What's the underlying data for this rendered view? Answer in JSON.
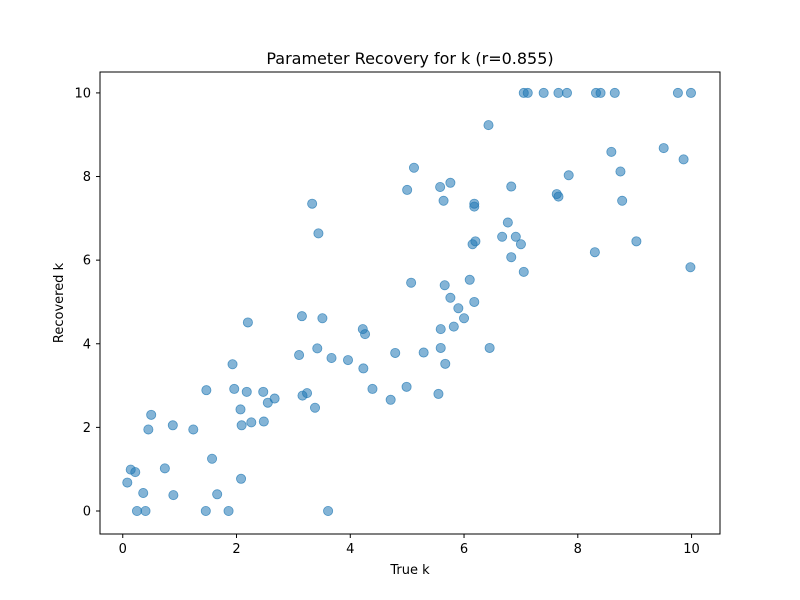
{
  "chart_data": {
    "type": "scatter",
    "title": "Parameter Recovery for k (r=0.855)",
    "xlabel": "True k",
    "ylabel": "Recovered k",
    "xlim": [
      -0.4,
      10.5
    ],
    "ylim": [
      -0.55,
      10.5
    ],
    "xticks": [
      0,
      2,
      4,
      6,
      8,
      10
    ],
    "yticks": [
      0,
      2,
      4,
      6,
      8,
      10
    ],
    "grid": false,
    "point_color": "#1f77b4",
    "point_alpha": 0.55,
    "points": [
      [
        0.08,
        0.68
      ],
      [
        0.14,
        0.99
      ],
      [
        0.22,
        0.93
      ],
      [
        0.25,
        0.0
      ],
      [
        0.36,
        0.43
      ],
      [
        0.4,
        0.0
      ],
      [
        0.45,
        1.95
      ],
      [
        0.5,
        2.3
      ],
      [
        0.74,
        1.02
      ],
      [
        0.88,
        2.05
      ],
      [
        0.89,
        0.38
      ],
      [
        1.24,
        1.95
      ],
      [
        1.46,
        0.0
      ],
      [
        1.47,
        2.89
      ],
      [
        1.57,
        1.25
      ],
      [
        1.66,
        0.4
      ],
      [
        1.86,
        0.0
      ],
      [
        1.93,
        3.51
      ],
      [
        1.96,
        2.92
      ],
      [
        2.07,
        2.43
      ],
      [
        2.08,
        0.77
      ],
      [
        2.09,
        2.05
      ],
      [
        2.18,
        2.85
      ],
      [
        2.2,
        4.51
      ],
      [
        2.26,
        2.12
      ],
      [
        2.47,
        2.85
      ],
      [
        2.48,
        2.14
      ],
      [
        2.55,
        2.59
      ],
      [
        2.67,
        2.69
      ],
      [
        3.1,
        3.73
      ],
      [
        3.15,
        4.66
      ],
      [
        3.16,
        2.76
      ],
      [
        3.24,
        2.82
      ],
      [
        3.33,
        7.35
      ],
      [
        3.38,
        2.47
      ],
      [
        3.42,
        3.89
      ],
      [
        3.44,
        6.64
      ],
      [
        3.51,
        4.61
      ],
      [
        3.61,
        0.0
      ],
      [
        3.67,
        3.66
      ],
      [
        3.96,
        3.61
      ],
      [
        4.22,
        4.35
      ],
      [
        4.23,
        3.41
      ],
      [
        4.26,
        4.23
      ],
      [
        4.39,
        2.92
      ],
      [
        4.71,
        2.66
      ],
      [
        4.79,
        3.78
      ],
      [
        4.99,
        2.97
      ],
      [
        5.0,
        7.68
      ],
      [
        5.07,
        5.46
      ],
      [
        5.12,
        8.21
      ],
      [
        5.29,
        3.79
      ],
      [
        5.55,
        2.8
      ],
      [
        5.58,
        7.75
      ],
      [
        5.59,
        3.9
      ],
      [
        5.59,
        4.35
      ],
      [
        5.64,
        7.42
      ],
      [
        5.66,
        5.4
      ],
      [
        5.67,
        3.52
      ],
      [
        5.76,
        5.1
      ],
      [
        5.76,
        7.85
      ],
      [
        5.82,
        4.41
      ],
      [
        5.9,
        4.85
      ],
      [
        6.0,
        4.61
      ],
      [
        6.1,
        5.53
      ],
      [
        6.15,
        6.38
      ],
      [
        6.18,
        7.35
      ],
      [
        6.18,
        7.28
      ],
      [
        6.18,
        5.0
      ],
      [
        6.2,
        6.45
      ],
      [
        6.43,
        9.23
      ],
      [
        6.45,
        3.9
      ],
      [
        6.67,
        6.56
      ],
      [
        6.77,
        6.9
      ],
      [
        6.83,
        7.76
      ],
      [
        6.83,
        6.07
      ],
      [
        6.91,
        6.56
      ],
      [
        7.0,
        6.38
      ],
      [
        7.05,
        5.72
      ],
      [
        7.05,
        10.0
      ],
      [
        7.12,
        10.0
      ],
      [
        7.4,
        10.0
      ],
      [
        7.63,
        7.58
      ],
      [
        7.66,
        7.52
      ],
      [
        7.66,
        10.0
      ],
      [
        7.81,
        10.0
      ],
      [
        7.84,
        8.03
      ],
      [
        8.3,
        6.19
      ],
      [
        8.32,
        10.0
      ],
      [
        8.4,
        10.0
      ],
      [
        8.59,
        8.59
      ],
      [
        8.65,
        10.0
      ],
      [
        8.75,
        8.12
      ],
      [
        8.78,
        7.42
      ],
      [
        9.03,
        6.45
      ],
      [
        9.51,
        8.68
      ],
      [
        9.76,
        10.0
      ],
      [
        9.86,
        8.41
      ],
      [
        9.98,
        5.83
      ],
      [
        9.99,
        10.0
      ]
    ]
  }
}
